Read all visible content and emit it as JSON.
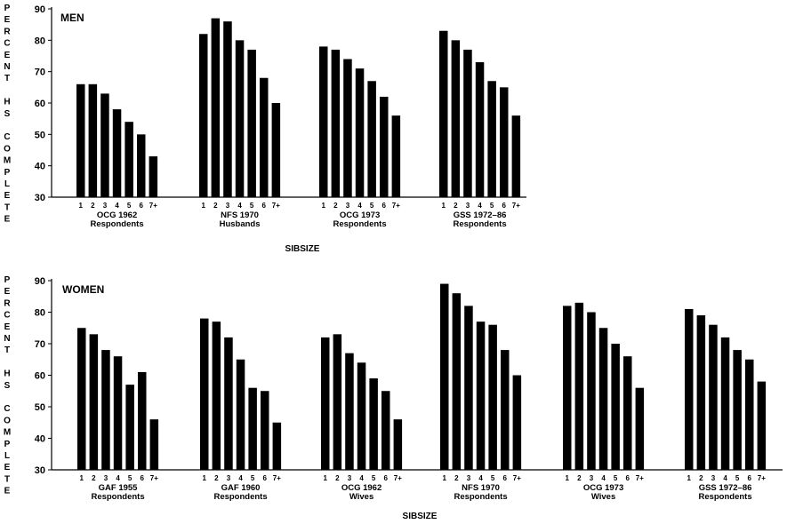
{
  "chart_data": [
    {
      "type": "bar",
      "panel_label": "MEN",
      "ylabel": "PERCENT HS COMPLETE",
      "xlabel": "SIBSIZE",
      "ylim": [
        30,
        90
      ],
      "yticks": [
        30,
        40,
        50,
        60,
        70,
        80,
        90
      ],
      "categories": [
        "1",
        "2",
        "3",
        "4",
        "5",
        "6",
        "7+"
      ],
      "series": [
        {
          "name": "OCG 1962",
          "sublabel": "Respondents",
          "values": [
            66,
            66,
            63,
            58,
            54,
            50,
            43
          ]
        },
        {
          "name": "NFS 1970",
          "sublabel": "Husbands",
          "values": [
            82,
            87,
            86,
            80,
            77,
            68,
            60
          ]
        },
        {
          "name": "OCG 1973",
          "sublabel": "Respondents",
          "values": [
            78,
            77,
            74,
            71,
            67,
            62,
            56
          ]
        },
        {
          "name": "GSS 1972–86",
          "sublabel": "Respondents",
          "values": [
            83,
            80,
            77,
            73,
            67,
            65,
            56
          ]
        }
      ]
    },
    {
      "type": "bar",
      "panel_label": "WOMEN",
      "ylabel": "PERCENT HS COMPLETE",
      "xlabel": "SIBSIZE",
      "ylim": [
        30,
        90
      ],
      "yticks": [
        30,
        40,
        50,
        60,
        70,
        80,
        90
      ],
      "categories": [
        "1",
        "2",
        "3",
        "4",
        "5",
        "6",
        "7+"
      ],
      "series": [
        {
          "name": "GAF 1955",
          "sublabel": "Respondents",
          "values": [
            75,
            73,
            68,
            66,
            57,
            61,
            46
          ]
        },
        {
          "name": "GAF 1960",
          "sublabel": "Respondents",
          "values": [
            78,
            77,
            72,
            65,
            56,
            55,
            45
          ]
        },
        {
          "name": "OCG 1962",
          "sublabel": "Wives",
          "values": [
            72,
            73,
            67,
            64,
            59,
            55,
            46
          ]
        },
        {
          "name": "NFS 1970",
          "sublabel": "Respondents",
          "values": [
            89,
            86,
            82,
            77,
            76,
            68,
            60
          ]
        },
        {
          "name": "OCG 1973",
          "sublabel": "Wives",
          "values": [
            82,
            83,
            80,
            75,
            70,
            66,
            56
          ]
        },
        {
          "name": "GSS 1972–86",
          "sublabel": "Respondents",
          "values": [
            81,
            79,
            76,
            72,
            68,
            65,
            58
          ]
        }
      ]
    }
  ]
}
